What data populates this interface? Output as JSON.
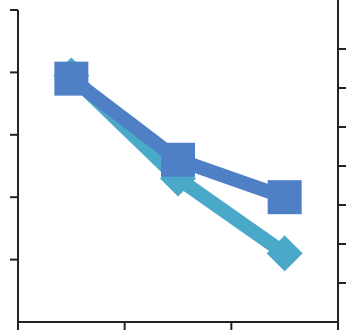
{
  "chart_data": {
    "type": "line",
    "title": "",
    "xlabel": "",
    "ylabel": "",
    "grid": false,
    "legend": "none",
    "x": [
      1,
      2,
      3
    ],
    "xlim": [
      0.5,
      3.5
    ],
    "x_ticks": [
      0.5,
      1.5,
      2.5,
      3.5
    ],
    "ylim": [
      0,
      5
    ],
    "y_ticks": [
      1,
      2,
      3,
      4,
      5
    ],
    "ylim_right": [
      0,
      8
    ],
    "y_ticks_right": [
      1,
      2,
      3,
      4,
      5,
      6,
      7
    ],
    "series": [
      {
        "values": [
          3.95,
          2.3,
          1.1
        ],
        "marker": "diamond",
        "color": "#4aa8c8",
        "axis": "left"
      },
      {
        "values": [
          3.9,
          2.6,
          2.0
        ],
        "marker": "square",
        "color": "#4f7fc4",
        "axis": "left"
      }
    ]
  }
}
